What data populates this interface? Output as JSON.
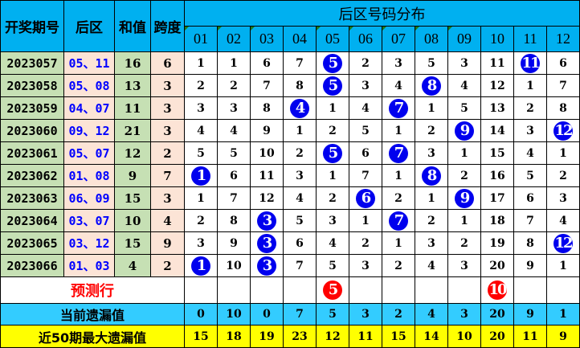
{
  "header": {
    "issue": "开奖期号",
    "back_zone": "后区",
    "sum": "和值",
    "span": "跨度",
    "distribution": "后区号码分布",
    "numbers": [
      "01",
      "02",
      "03",
      "04",
      "05",
      "06",
      "07",
      "08",
      "09",
      "10",
      "11",
      "12"
    ]
  },
  "rows": [
    {
      "issue": "2023057",
      "back": "05、11",
      "sum": "16",
      "span": "6",
      "cells": [
        "1",
        "1",
        "6",
        "7",
        "5",
        "2",
        "3",
        "5",
        "3",
        "11",
        "11",
        "6"
      ],
      "hits": [
        5,
        11
      ]
    },
    {
      "issue": "2023058",
      "back": "05、08",
      "sum": "13",
      "span": "3",
      "cells": [
        "2",
        "2",
        "7",
        "8",
        "5",
        "3",
        "4",
        "8",
        "4",
        "12",
        "1",
        "7"
      ],
      "hits": [
        5,
        8
      ]
    },
    {
      "issue": "2023059",
      "back": "04、07",
      "sum": "11",
      "span": "3",
      "cells": [
        "3",
        "3",
        "8",
        "4",
        "1",
        "4",
        "7",
        "1",
        "5",
        "13",
        "2",
        "8"
      ],
      "hits": [
        4,
        7
      ]
    },
    {
      "issue": "2023060",
      "back": "09、12",
      "sum": "21",
      "span": "3",
      "cells": [
        "4",
        "4",
        "9",
        "1",
        "2",
        "5",
        "1",
        "2",
        "9",
        "14",
        "3",
        "12"
      ],
      "hits": [
        9,
        12
      ]
    },
    {
      "issue": "2023061",
      "back": "05、07",
      "sum": "12",
      "span": "2",
      "cells": [
        "5",
        "5",
        "10",
        "2",
        "5",
        "6",
        "7",
        "3",
        "1",
        "15",
        "4",
        "1"
      ],
      "hits": [
        5,
        7
      ]
    },
    {
      "issue": "2023062",
      "back": "01、08",
      "sum": "9",
      "span": "7",
      "cells": [
        "1",
        "6",
        "11",
        "3",
        "1",
        "7",
        "1",
        "8",
        "2",
        "16",
        "5",
        "2"
      ],
      "hits": [
        1,
        8
      ]
    },
    {
      "issue": "2023063",
      "back": "06、09",
      "sum": "15",
      "span": "3",
      "cells": [
        "1",
        "7",
        "12",
        "4",
        "2",
        "6",
        "2",
        "1",
        "9",
        "17",
        "6",
        "3"
      ],
      "hits": [
        6,
        9
      ]
    },
    {
      "issue": "2023064",
      "back": "03、07",
      "sum": "10",
      "span": "4",
      "cells": [
        "2",
        "8",
        "3",
        "5",
        "3",
        "1",
        "7",
        "2",
        "1",
        "18",
        "7",
        "4"
      ],
      "hits": [
        3,
        7
      ]
    },
    {
      "issue": "2023065",
      "back": "03、12",
      "sum": "15",
      "span": "9",
      "cells": [
        "3",
        "9",
        "3",
        "6",
        "4",
        "2",
        "1",
        "3",
        "2",
        "19",
        "8",
        "12"
      ],
      "hits": [
        3,
        12
      ]
    },
    {
      "issue": "2023066",
      "back": "01、03",
      "sum": "4",
      "span": "2",
      "cells": [
        "1",
        "10",
        "3",
        "7",
        "5",
        "3",
        "2",
        "4",
        "3",
        "20",
        "9",
        "1"
      ],
      "hits": [
        1,
        3
      ]
    }
  ],
  "prediction": {
    "label": "预测行",
    "cells": [
      "",
      "",
      "",
      "",
      "5",
      "",
      "",
      "",
      "",
      "10",
      "",
      ""
    ]
  },
  "current_omission": {
    "label": "当前遗漏值",
    "values": [
      "0",
      "10",
      "0",
      "7",
      "5",
      "3",
      "2",
      "4",
      "3",
      "20",
      "9",
      "1"
    ]
  },
  "max_omission": {
    "label": "近50期最大遗漏值",
    "values": [
      "15",
      "18",
      "19",
      "23",
      "12",
      "11",
      "15",
      "14",
      "10",
      "20",
      "11",
      "9"
    ]
  },
  "colors": {
    "header": "#00b0f0",
    "hit_ball": "#0000ee",
    "prediction_ball": "#ff0000",
    "current_row": "#33ccff",
    "max_row": "#ffff00",
    "issue_bg": "#c6e0b4",
    "back_bg": "#fce4d6"
  }
}
